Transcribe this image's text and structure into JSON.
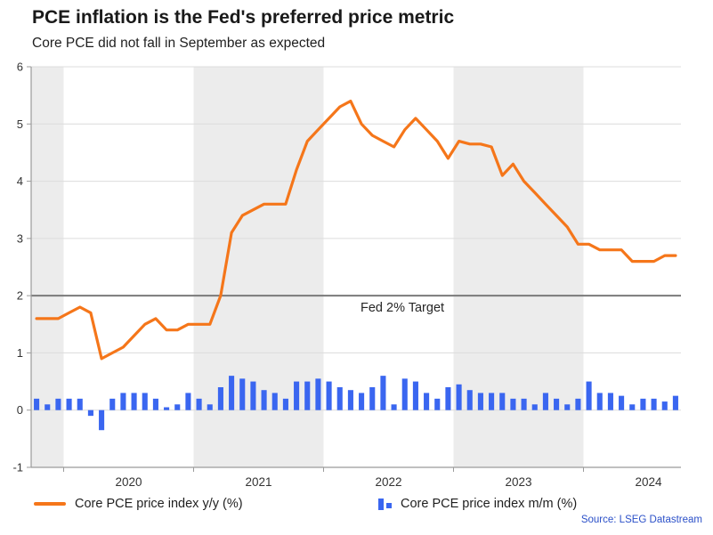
{
  "title": "PCE inflation is the Fed's preferred price metric",
  "subtitle": "Core PCE did not fall in September as expected",
  "target_label": "Fed 2% Target",
  "source": "Source: LSEG Datastream",
  "colors": {
    "line": "#f5761a",
    "bar": "#3a66f0",
    "band": "#ececec",
    "grid": "#dcdcdc",
    "axis": "#9b9b9b",
    "target": "#7a7a7a",
    "tick_text": "#333333"
  },
  "legend": [
    {
      "label": "Core PCE price index y/y (%)",
      "color": "#f5761a",
      "type": "line"
    },
    {
      "label": "Core PCE price index m/m (%)",
      "color": "#3a66f0",
      "type": "bar"
    }
  ],
  "chart_data": {
    "type": "line+bar",
    "start": {
      "year": 2019,
      "month": 10
    },
    "frequency": "monthly",
    "ylim": [
      -1,
      6
    ],
    "y_ticks": [
      -1,
      0,
      1,
      2,
      3,
      4,
      5,
      6
    ],
    "x_tick_years": [
      2020,
      2021,
      2022,
      2023,
      2024
    ],
    "shaded_years": [
      2019,
      2021,
      2023
    ],
    "target_value": 2,
    "grid": true,
    "legend_position": "bottom",
    "series": [
      {
        "name": "Core PCE price index y/y (%)",
        "type": "line",
        "color": "#f5761a",
        "values": [
          1.6,
          1.6,
          1.6,
          1.7,
          1.8,
          1.7,
          0.9,
          1.0,
          1.1,
          1.3,
          1.5,
          1.6,
          1.4,
          1.4,
          1.5,
          1.5,
          1.5,
          2.0,
          3.1,
          3.4,
          3.5,
          3.6,
          3.6,
          3.6,
          4.2,
          4.7,
          4.9,
          5.1,
          5.3,
          5.4,
          5.0,
          4.8,
          4.7,
          4.6,
          4.9,
          5.1,
          4.9,
          4.7,
          4.4,
          4.7,
          4.65,
          4.65,
          4.6,
          4.1,
          4.3,
          4.0,
          3.8,
          3.6,
          3.4,
          3.2,
          2.9,
          2.9,
          2.8,
          2.8,
          2.8,
          2.6,
          2.6,
          2.6,
          2.7,
          2.7
        ]
      },
      {
        "name": "Core PCE price index m/m (%)",
        "type": "bar",
        "color": "#3a66f0",
        "values": [
          0.2,
          0.1,
          0.2,
          0.2,
          0.2,
          -0.1,
          -0.35,
          0.2,
          0.3,
          0.3,
          0.3,
          0.2,
          0.05,
          0.1,
          0.3,
          0.2,
          0.1,
          0.4,
          0.6,
          0.55,
          0.5,
          0.35,
          0.3,
          0.2,
          0.5,
          0.5,
          0.55,
          0.5,
          0.4,
          0.35,
          0.3,
          0.4,
          0.6,
          0.1,
          0.55,
          0.5,
          0.3,
          0.2,
          0.4,
          0.45,
          0.35,
          0.3,
          0.3,
          0.3,
          0.2,
          0.2,
          0.1,
          0.3,
          0.2,
          0.1,
          0.2,
          0.5,
          0.3,
          0.3,
          0.25,
          0.1,
          0.2,
          0.2,
          0.15,
          0.25
        ]
      }
    ]
  }
}
